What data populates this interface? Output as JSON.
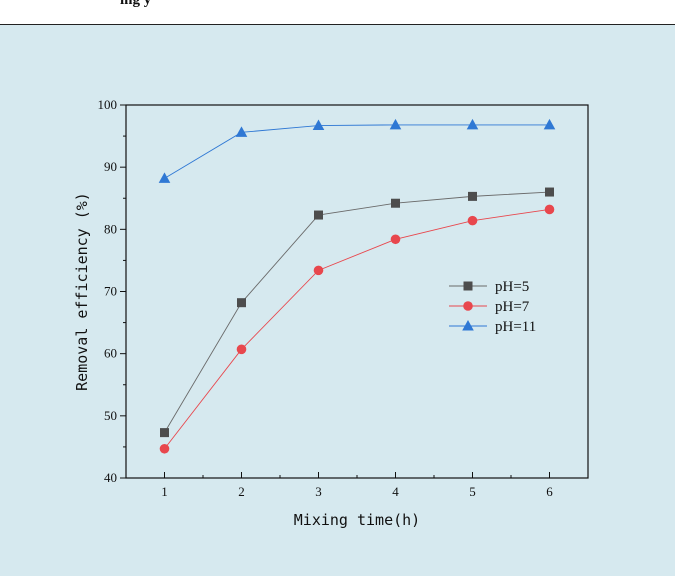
{
  "header": {
    "text": "ing      y"
  },
  "chart_data": {
    "type": "line",
    "x": [
      1,
      2,
      3,
      4,
      5,
      6
    ],
    "xlabel": "Mixing time(h)",
    "ylabel": "Removal efficiency (%)",
    "xlim": [
      0.5,
      6.5
    ],
    "ylim": [
      40,
      100
    ],
    "xticks": [
      1,
      2,
      3,
      4,
      5,
      6
    ],
    "yticks": [
      40,
      50,
      60,
      70,
      80,
      90,
      100
    ],
    "grid": false,
    "legend_position": "right-center",
    "series": [
      {
        "name": "pH=5",
        "values": [
          47.3,
          68.2,
          82.3,
          84.2,
          85.3,
          86.0
        ],
        "color": "#4d4d4d",
        "line_color": "#6a6a6a",
        "marker": "square"
      },
      {
        "name": "pH=7",
        "values": [
          44.7,
          60.7,
          73.4,
          78.4,
          81.4,
          83.2
        ],
        "color": "#e8474d",
        "line_color": "#e8474d",
        "marker": "circle"
      },
      {
        "name": "pH=11",
        "values": [
          88.2,
          95.6,
          96.7,
          96.8,
          96.8,
          96.8
        ],
        "color": "#2f78d4",
        "line_color": "#2f78d4",
        "marker": "triangle"
      }
    ]
  }
}
